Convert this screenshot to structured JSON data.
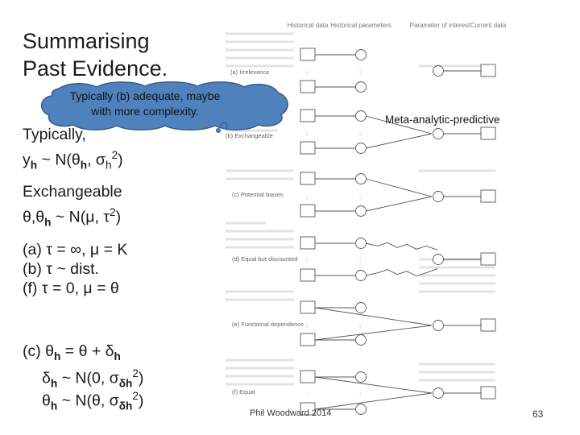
{
  "title_line1": "Summarising",
  "title_line2": "Past Evidence.",
  "cloud_line1": "Typically (b) adequate, maybe",
  "cloud_line2": "with more complexity.",
  "typically_label": "Typically,",
  "typically_formula": "yh ~ N(θh, σh2)",
  "exch_label": "Exchangeable",
  "exch_formula": "θ,θh ~ N(μ, τ2)",
  "case_a": "(a) τ = ∞, μ = K",
  "case_b": "(b) τ ~ dist.",
  "case_f": "(f) τ = 0, μ = θ",
  "case_c1": "(c) θh = θ + δh",
  "case_c2": "δh ~ N(0, σδh2)",
  "case_c3": "θh ~ N(θ, σδh2)",
  "map_label": "Meta-analytic-predictive",
  "footer": "Phil Woodward 2014",
  "page_number": "63",
  "diagram": {
    "headers": [
      "Historical data",
      "Historical parameters",
      "Parameter of interest",
      "Current data"
    ],
    "panels": [
      "(a) Irrelevance",
      "(b) Exchangeable",
      "(c) Potential biases",
      "(d) Equal but discounted",
      "(e) Functional dependence",
      "(f) Equal"
    ]
  }
}
